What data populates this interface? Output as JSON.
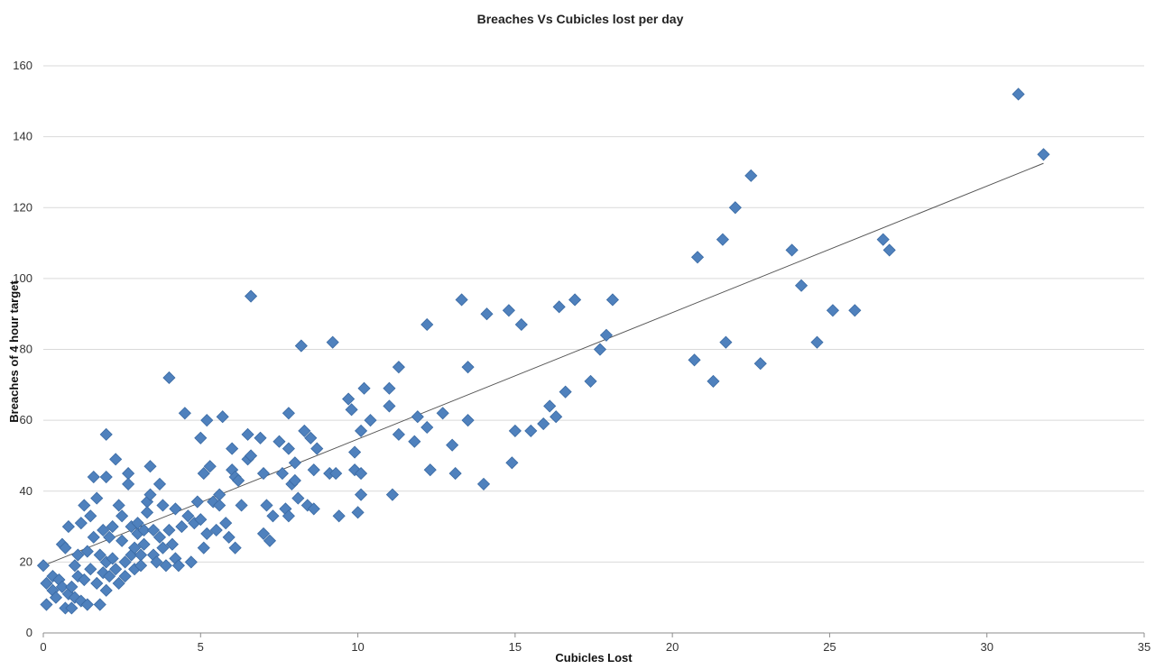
{
  "chart_data": {
    "type": "scatter",
    "title": "Breaches Vs Cubicles lost per day",
    "xlabel": "Cubicles Lost",
    "ylabel": "Breaches of 4 hour target",
    "xlim": [
      0,
      35
    ],
    "ylim": [
      0,
      160
    ],
    "x_ticks": [
      0,
      5,
      10,
      15,
      20,
      25,
      30,
      35
    ],
    "y_ticks": [
      0,
      20,
      40,
      60,
      80,
      100,
      120,
      140,
      160
    ],
    "grid": "horizontal",
    "legend": "none",
    "marker": "diamond",
    "point_color": "#4f81bd",
    "trendline": {
      "type": "linear",
      "x": [
        0,
        31.8
      ],
      "y": [
        19,
        132.5
      ],
      "color": "#555555"
    },
    "points": [
      [
        0.0,
        19
      ],
      [
        0.1,
        14
      ],
      [
        0.1,
        8
      ],
      [
        0.3,
        16
      ],
      [
        0.3,
        12
      ],
      [
        0.4,
        10
      ],
      [
        0.5,
        15
      ],
      [
        0.6,
        13
      ],
      [
        0.6,
        25
      ],
      [
        0.7,
        24
      ],
      [
        0.7,
        7
      ],
      [
        0.8,
        11
      ],
      [
        0.8,
        30
      ],
      [
        0.9,
        13
      ],
      [
        0.9,
        7
      ],
      [
        1.0,
        19
      ],
      [
        1.0,
        10
      ],
      [
        1.1,
        22
      ],
      [
        1.1,
        16
      ],
      [
        1.2,
        31
      ],
      [
        1.2,
        9
      ],
      [
        1.3,
        36
      ],
      [
        1.3,
        15
      ],
      [
        1.4,
        23
      ],
      [
        1.4,
        8
      ],
      [
        1.5,
        33
      ],
      [
        1.5,
        18
      ],
      [
        1.6,
        44
      ],
      [
        1.6,
        27
      ],
      [
        1.7,
        14
      ],
      [
        1.7,
        38
      ],
      [
        1.8,
        22
      ],
      [
        1.8,
        8
      ],
      [
        1.9,
        29
      ],
      [
        1.9,
        17
      ],
      [
        2.0,
        56
      ],
      [
        2.0,
        44
      ],
      [
        2.0,
        20
      ],
      [
        2.0,
        12
      ],
      [
        2.1,
        27
      ],
      [
        2.1,
        16
      ],
      [
        2.2,
        30
      ],
      [
        2.2,
        21
      ],
      [
        2.3,
        49
      ],
      [
        2.3,
        18
      ],
      [
        2.4,
        14
      ],
      [
        2.4,
        36
      ],
      [
        2.5,
        26
      ],
      [
        2.5,
        33
      ],
      [
        2.6,
        20
      ],
      [
        2.6,
        16
      ],
      [
        2.7,
        45
      ],
      [
        2.7,
        42
      ],
      [
        2.8,
        30
      ],
      [
        2.8,
        22
      ],
      [
        2.9,
        24
      ],
      [
        2.9,
        18
      ],
      [
        3.0,
        28
      ],
      [
        3.0,
        31
      ],
      [
        3.1,
        22
      ],
      [
        3.1,
        19
      ],
      [
        3.2,
        29
      ],
      [
        3.2,
        25
      ],
      [
        3.3,
        37
      ],
      [
        3.3,
        34
      ],
      [
        3.4,
        47
      ],
      [
        3.4,
        39
      ],
      [
        3.5,
        29
      ],
      [
        3.5,
        22
      ],
      [
        3.6,
        20
      ],
      [
        3.7,
        42
      ],
      [
        3.7,
        27
      ],
      [
        3.8,
        36
      ],
      [
        3.8,
        24
      ],
      [
        3.9,
        19
      ],
      [
        4.0,
        72
      ],
      [
        4.0,
        29
      ],
      [
        4.1,
        25
      ],
      [
        4.2,
        21
      ],
      [
        4.2,
        35
      ],
      [
        4.3,
        19
      ],
      [
        4.4,
        30
      ],
      [
        4.5,
        62
      ],
      [
        4.6,
        33
      ],
      [
        4.7,
        20
      ],
      [
        4.8,
        31
      ],
      [
        4.9,
        37
      ],
      [
        5.0,
        32
      ],
      [
        5.0,
        55
      ],
      [
        5.1,
        45
      ],
      [
        5.1,
        24
      ],
      [
        5.2,
        60
      ],
      [
        5.2,
        28
      ],
      [
        5.3,
        47
      ],
      [
        5.4,
        37
      ],
      [
        5.5,
        29
      ],
      [
        5.6,
        39
      ],
      [
        5.6,
        36
      ],
      [
        5.7,
        61
      ],
      [
        5.8,
        31
      ],
      [
        5.9,
        27
      ],
      [
        6.0,
        46
      ],
      [
        6.0,
        52
      ],
      [
        6.1,
        44
      ],
      [
        6.1,
        24
      ],
      [
        6.2,
        43
      ],
      [
        6.3,
        36
      ],
      [
        6.5,
        49
      ],
      [
        6.5,
        56
      ],
      [
        6.6,
        50
      ],
      [
        6.6,
        95
      ],
      [
        6.9,
        55
      ],
      [
        7.0,
        28
      ],
      [
        7.0,
        45
      ],
      [
        7.1,
        36
      ],
      [
        7.2,
        26
      ],
      [
        7.3,
        33
      ],
      [
        7.5,
        54
      ],
      [
        7.6,
        45
      ],
      [
        7.7,
        35
      ],
      [
        7.8,
        62
      ],
      [
        7.8,
        52
      ],
      [
        7.8,
        33
      ],
      [
        7.9,
        42
      ],
      [
        8.0,
        48
      ],
      [
        8.0,
        43
      ],
      [
        8.1,
        38
      ],
      [
        8.2,
        81
      ],
      [
        8.3,
        57
      ],
      [
        8.4,
        36
      ],
      [
        8.5,
        55
      ],
      [
        8.6,
        46
      ],
      [
        8.6,
        35
      ],
      [
        8.7,
        52
      ],
      [
        9.1,
        45
      ],
      [
        9.2,
        82
      ],
      [
        9.3,
        45
      ],
      [
        9.4,
        33
      ],
      [
        9.7,
        66
      ],
      [
        9.8,
        63
      ],
      [
        9.9,
        51
      ],
      [
        9.9,
        46
      ],
      [
        10.0,
        34
      ],
      [
        10.1,
        57
      ],
      [
        10.1,
        45
      ],
      [
        10.1,
        39
      ],
      [
        10.2,
        69
      ],
      [
        10.4,
        60
      ],
      [
        11.0,
        69
      ],
      [
        11.0,
        64
      ],
      [
        11.1,
        39
      ],
      [
        11.3,
        75
      ],
      [
        11.3,
        56
      ],
      [
        11.8,
        54
      ],
      [
        11.9,
        61
      ],
      [
        12.2,
        87
      ],
      [
        12.2,
        58
      ],
      [
        12.3,
        46
      ],
      [
        12.7,
        62
      ],
      [
        13.0,
        53
      ],
      [
        13.1,
        45
      ],
      [
        13.3,
        94
      ],
      [
        13.5,
        75
      ],
      [
        13.5,
        60
      ],
      [
        14.0,
        42
      ],
      [
        14.1,
        90
      ],
      [
        14.8,
        91
      ],
      [
        14.9,
        48
      ],
      [
        15.0,
        57
      ],
      [
        15.2,
        87
      ],
      [
        15.5,
        57
      ],
      [
        15.9,
        59
      ],
      [
        16.1,
        64
      ],
      [
        16.3,
        61
      ],
      [
        16.4,
        92
      ],
      [
        16.6,
        68
      ],
      [
        16.9,
        94
      ],
      [
        17.4,
        71
      ],
      [
        17.7,
        80
      ],
      [
        17.9,
        84
      ],
      [
        18.1,
        94
      ],
      [
        20.7,
        77
      ],
      [
        20.8,
        106
      ],
      [
        21.3,
        71
      ],
      [
        21.6,
        111
      ],
      [
        21.7,
        82
      ],
      [
        22.0,
        120
      ],
      [
        22.5,
        129
      ],
      [
        22.8,
        76
      ],
      [
        23.8,
        108
      ],
      [
        24.1,
        98
      ],
      [
        24.6,
        82
      ],
      [
        25.1,
        91
      ],
      [
        25.8,
        91
      ],
      [
        26.7,
        111
      ],
      [
        26.9,
        108
      ],
      [
        31.0,
        152
      ],
      [
        31.8,
        135
      ]
    ]
  }
}
